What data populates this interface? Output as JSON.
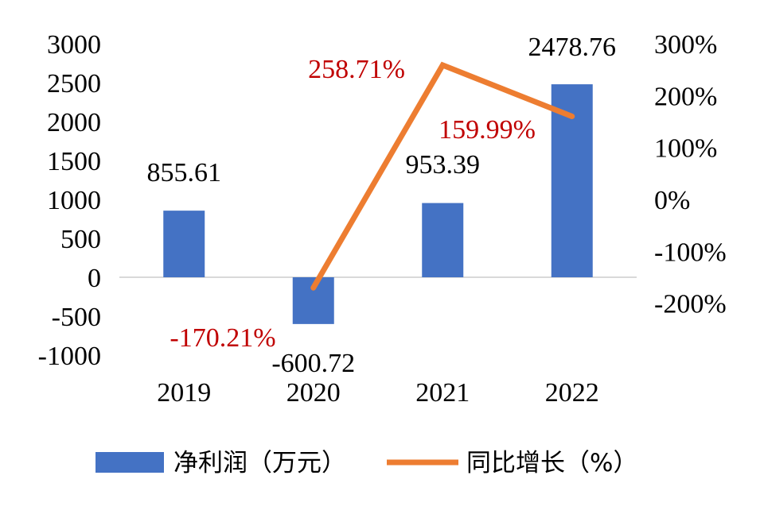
{
  "chart_data": {
    "type": "bar+line",
    "categories": [
      "2019",
      "2020",
      "2021",
      "2022"
    ],
    "series": [
      {
        "name": "净利润（万元）",
        "kind": "bar",
        "axis": "left",
        "color": "#4472C4",
        "values": [
          855.61,
          -600.72,
          953.39,
          2478.76
        ],
        "labels": [
          "855.61",
          "-600.72",
          "953.39",
          "2478.76"
        ]
      },
      {
        "name": "同比增长（%）",
        "kind": "line",
        "axis": "right",
        "color": "#ED7D31",
        "values": [
          null,
          -170.21,
          258.71,
          159.99
        ],
        "labels": [
          "",
          "-170.21%",
          "258.71%",
          "159.99%"
        ]
      }
    ],
    "y_left": {
      "min": -1000,
      "max": 3000,
      "ticks": [
        "3000",
        "2500",
        "2000",
        "1500",
        "1000",
        "500",
        "0",
        "-500",
        "-1000"
      ]
    },
    "y_right": {
      "min": -300,
      "max": 300,
      "ticks": [
        "300%",
        "200%",
        "100%",
        "0%",
        "-100%",
        "-200%"
      ]
    },
    "grid": false,
    "legend_position": "bottom",
    "line_label_color": "#C00000"
  }
}
